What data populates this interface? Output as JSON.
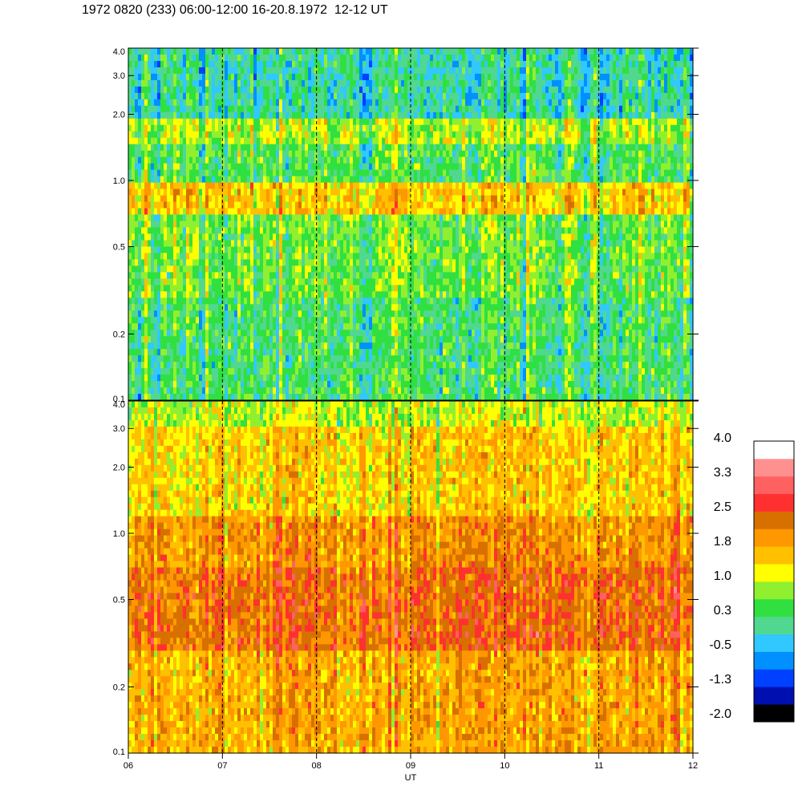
{
  "title": "1972 0820 (233) 06:00-12:00 16-20.8.1972  12-12 UT",
  "chart_data": {
    "type": "heatmap",
    "title": "1972 0820 (233) 06:00-12:00 16-20.8.1972  12-12 UT",
    "xlabel": "UT",
    "ylabel": "",
    "x_ticks": [
      "06",
      "07",
      "08",
      "09",
      "10",
      "11",
      "12"
    ],
    "xlim": [
      6,
      12
    ],
    "grid": "vertical dashed at each hour",
    "panels": [
      {
        "name": "",
        "yscale": "log",
        "ylim": [
          0.1,
          4.0
        ],
        "y_ticks": [
          {
            "value": 0.1,
            "label": "0.1"
          },
          {
            "value": 0.2,
            "label": "0.2"
          },
          {
            "value": 0.5,
            "label": "0.5"
          },
          {
            "value": 1.0,
            "label": "1.0"
          },
          {
            "value": 2.0,
            "label": "2.0"
          },
          {
            "value": 3.0,
            "label": "3.0"
          },
          {
            "value": 4.0,
            "label": "4.0"
          }
        ],
        "bands": [
          {
            "from": 0.1,
            "to": 0.3,
            "level": 0.3
          },
          {
            "from": 0.3,
            "to": 0.7,
            "level": 0.6
          },
          {
            "from": 0.7,
            "to": 1.0,
            "level": 1.5
          },
          {
            "from": 1.0,
            "to": 1.5,
            "level": 0.4
          },
          {
            "from": 1.5,
            "to": 1.9,
            "level": 0.9
          },
          {
            "from": 1.9,
            "to": 4.0,
            "level": 0.0
          }
        ]
      },
      {
        "name": "",
        "yscale": "log",
        "ylim": [
          0.1,
          4.0
        ],
        "y_ticks": [
          {
            "value": 0.1,
            "label": "0.1"
          },
          {
            "value": 0.2,
            "label": "0.2"
          },
          {
            "value": 0.5,
            "label": "0.5"
          },
          {
            "value": 1.0,
            "label": "1.0"
          },
          {
            "value": 2.0,
            "label": "2.0"
          },
          {
            "value": 3.0,
            "label": "3.0"
          },
          {
            "value": 4.0,
            "label": "4.0"
          }
        ],
        "bands": [
          {
            "from": 0.1,
            "to": 0.3,
            "level": 1.8
          },
          {
            "from": 0.3,
            "to": 0.7,
            "level": 2.3
          },
          {
            "from": 0.7,
            "to": 1.2,
            "level": 2.0
          },
          {
            "from": 1.2,
            "to": 3.0,
            "level": 1.5
          },
          {
            "from": 3.0,
            "to": 4.0,
            "level": 1.0
          }
        ]
      }
    ],
    "colorbar": {
      "labels": [
        "4.0",
        "3.3",
        "2.5",
        "1.8",
        "1.0",
        "0.3",
        "-0.5",
        "-1.3",
        "-2.0"
      ],
      "range": [
        -2.0,
        4.0
      ],
      "colors": [
        "#000000",
        "#0010b0",
        "#0040ff",
        "#0090ff",
        "#30c8ff",
        "#50d890",
        "#30e040",
        "#90f030",
        "#ffff00",
        "#ffc000",
        "#ff9800",
        "#d87000",
        "#ff3030",
        "#ff6060",
        "#ff9090",
        "#ffffff"
      ]
    }
  }
}
